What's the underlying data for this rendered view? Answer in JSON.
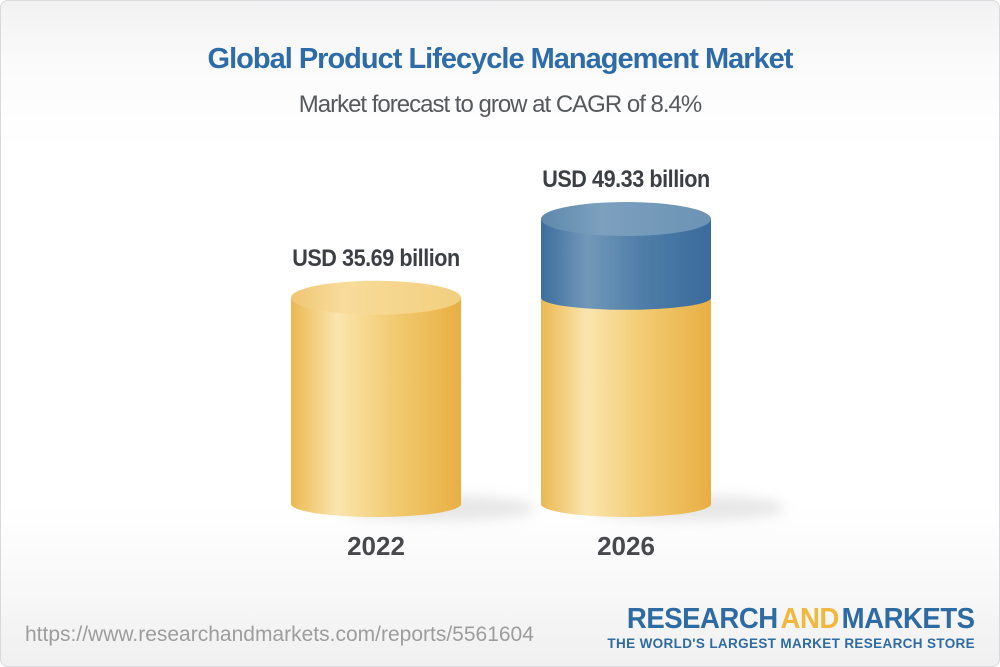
{
  "header": {
    "title": "Global Product Lifecycle Management Market",
    "subtitle": "Market forecast to grow at CAGR of 8.4%"
  },
  "chart_data": {
    "type": "bar",
    "variant": "3d-cylinder",
    "categories": [
      "2022",
      "2026"
    ],
    "values": [
      35.69,
      49.33
    ],
    "unit": "USD billion",
    "value_labels": [
      "USD 35.69 billion",
      "USD 49.33 billion"
    ],
    "cagr_percent": 8.4,
    "growth_segment": {
      "from": 35.69,
      "to": 49.33
    },
    "colors": {
      "base_cylinder": "#F3CE7C",
      "base_cylinder_dark": "#E8AF43",
      "base_cylinder_light": "#FAE5AE",
      "growth_cylinder": "#4E7DA8",
      "growth_cylinder_dark": "#3A6B9B",
      "growth_cylinder_light": "#7298B9"
    },
    "legend": "none",
    "axes": "none"
  },
  "footer": {
    "url": "https://www.researchandmarkets.com/reports/5561604",
    "logo": {
      "word1": "RESEARCH",
      "word2": "AND",
      "word3": "MARKETS",
      "tagline": "THE WORLD'S LARGEST MARKET RESEARCH STORE"
    }
  },
  "theme": {
    "title_color": "#2D6CA8",
    "subtitle_color": "#56595C",
    "label_color": "#3B3F43",
    "logo_blue": "#2E6BA3",
    "logo_gold": "#F0B83D"
  }
}
